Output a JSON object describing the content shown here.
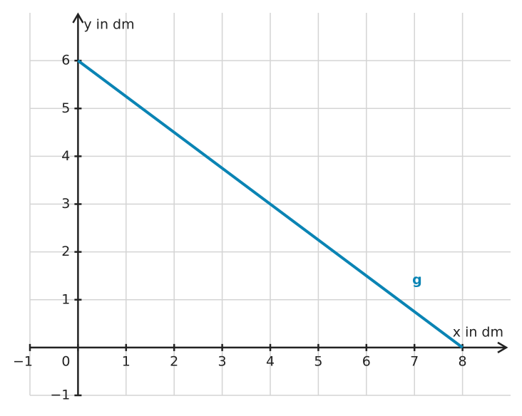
{
  "chart_data": {
    "type": "line",
    "x_label": "x in dm",
    "y_label": "y in dm",
    "x": [
      0,
      8
    ],
    "series": [
      {
        "name": "g",
        "color": "#0a84b4",
        "values": [
          6,
          0
        ]
      }
    ],
    "xlim": [
      -1,
      9
    ],
    "ylim": [
      -1,
      7
    ],
    "xticks": [
      {
        "value": -1,
        "label": "−1"
      },
      0,
      1,
      2,
      3,
      4,
      5,
      6,
      7,
      8
    ],
    "yticks": [
      {
        "value": -1,
        "label": "−1"
      },
      1,
      2,
      3,
      4,
      5,
      6
    ],
    "grid": true
  }
}
